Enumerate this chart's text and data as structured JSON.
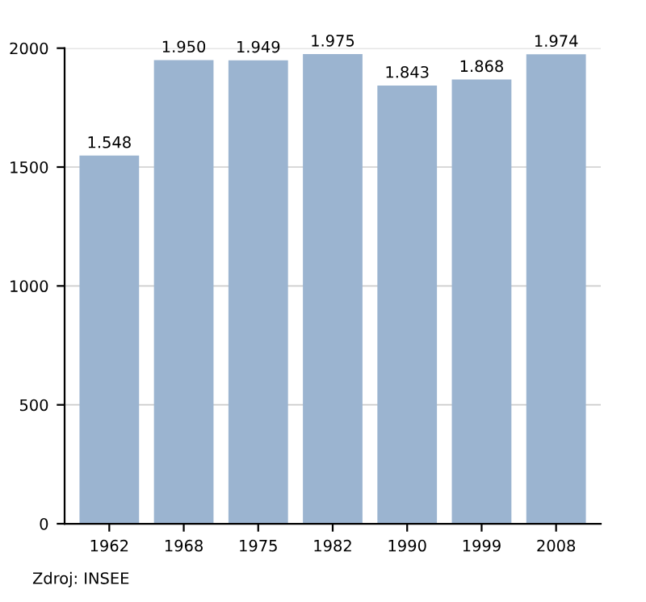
{
  "chart_data": {
    "type": "bar",
    "categories": [
      "1962",
      "1968",
      "1975",
      "1982",
      "1990",
      "1999",
      "2008"
    ],
    "values": [
      1548,
      1950,
      1949,
      1975,
      1843,
      1868,
      1974
    ],
    "value_labels": [
      "1.548",
      "1.950",
      "1.949",
      "1.975",
      "1.843",
      "1.868",
      "1.974"
    ],
    "color": "#9bb4d0",
    "ylim": [
      0,
      2000
    ],
    "yticks": [
      0,
      500,
      1000,
      1500,
      2000
    ],
    "grid": "y",
    "annotations": [
      "Zdroj: INSEE"
    ]
  }
}
